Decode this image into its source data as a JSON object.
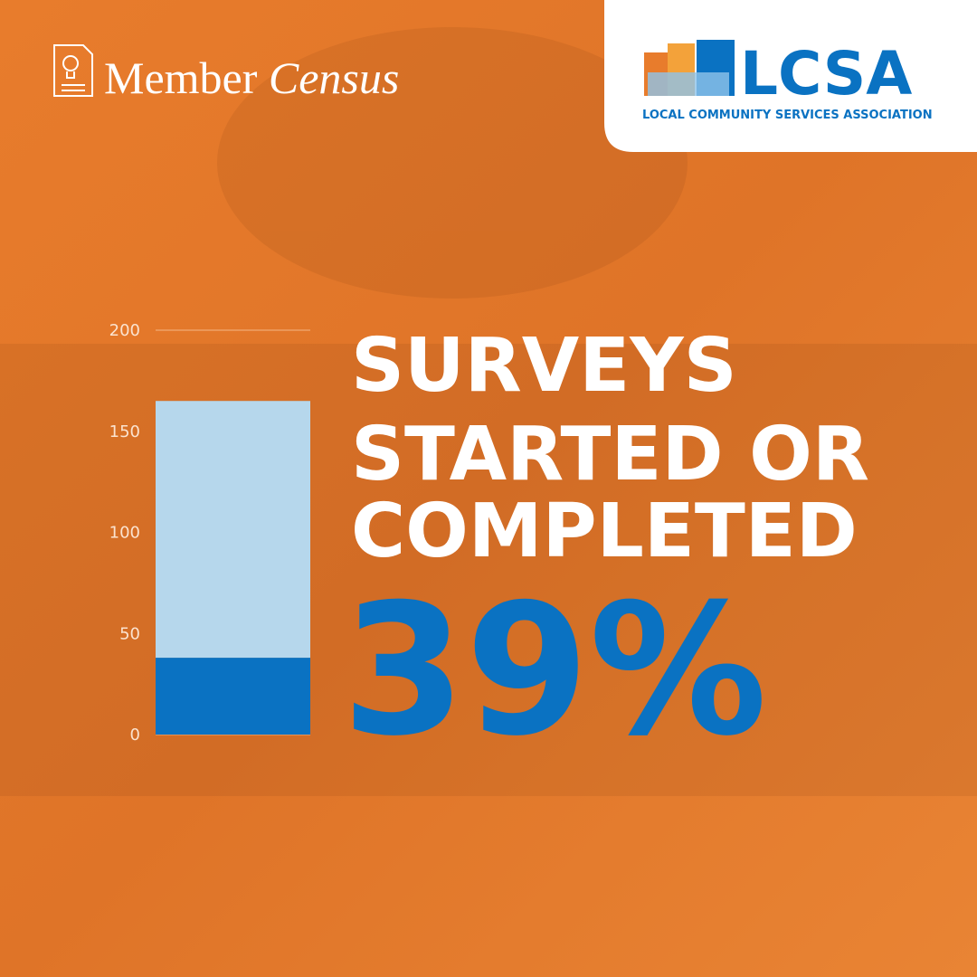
{
  "header": {
    "brand": [
      "Member",
      "Census"
    ]
  },
  "logo": {
    "name": "LCSA",
    "tagline": "LOCAL COMMUNITY SERVICES ASSOCIATION"
  },
  "chart_data": {
    "type": "bar",
    "title": [
      "SURVEYS",
      "STARTED OR",
      "COMPLETED"
    ],
    "annotation": "39%",
    "categories": [
      null
    ],
    "series": [
      {
        "color": "#0a72c2",
        "values": [
          38
        ]
      },
      {
        "color": "#b6d7ec",
        "values": [
          127
        ]
      }
    ],
    "stacked": true,
    "ylim": [
      0,
      200
    ],
    "yticks": [
      0,
      50,
      100,
      150,
      200
    ],
    "grid": true
  }
}
